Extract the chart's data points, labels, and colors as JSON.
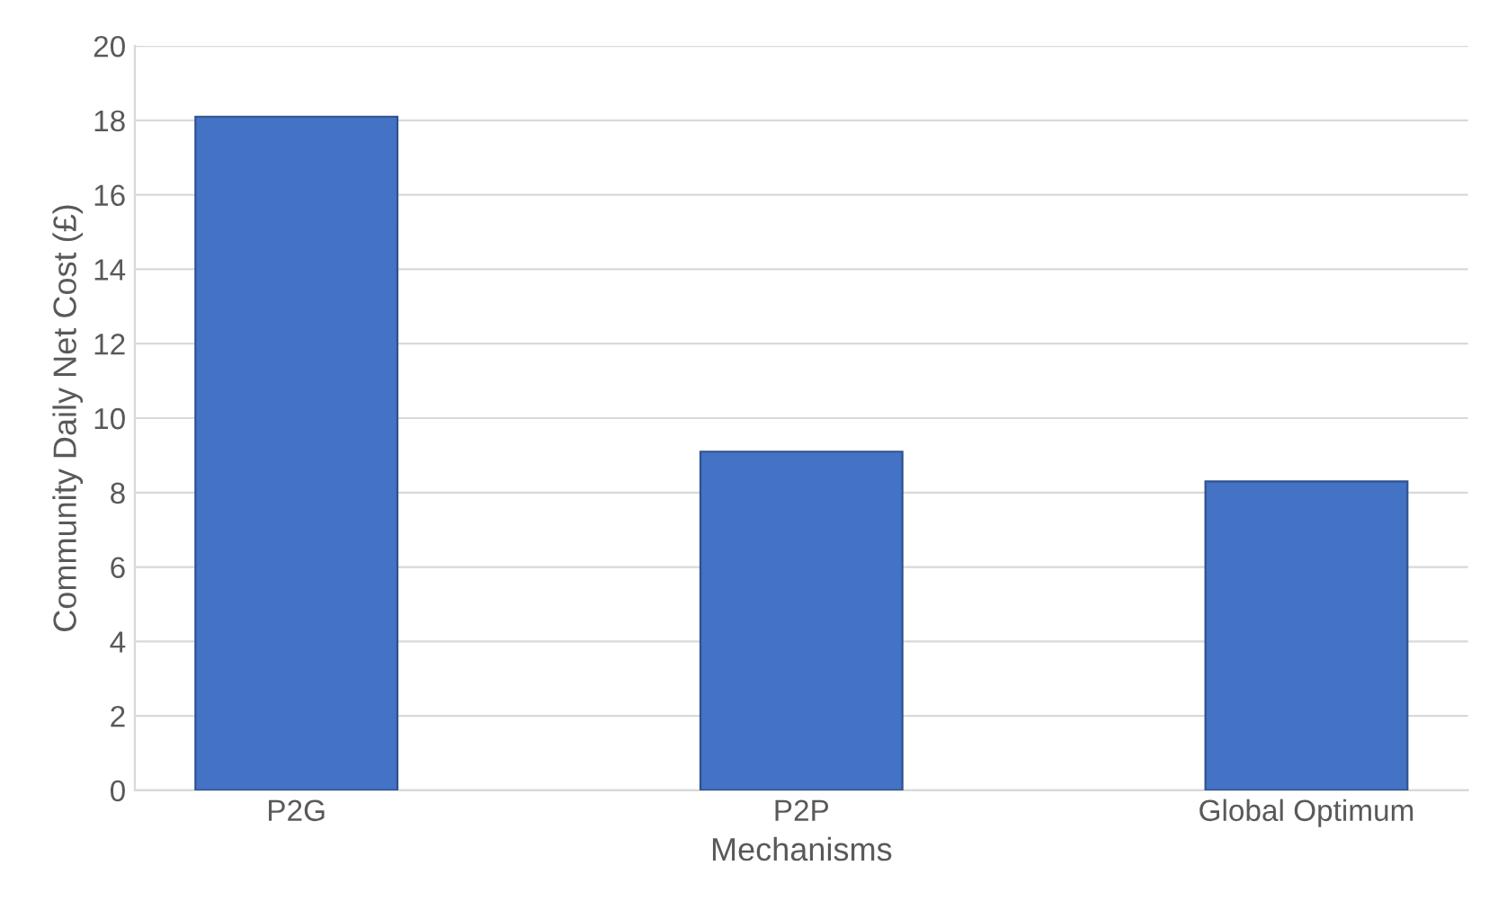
{
  "chart_data": {
    "type": "bar",
    "xlabel": "Mechanisms",
    "ylabel": "Community Daily Net Cost (£)",
    "categories": [
      "P2G",
      "P2P",
      "Global Optimum"
    ],
    "values": [
      18.1,
      9.1,
      8.3
    ],
    "color": "#4472c4",
    "ylim": [
      0,
      20
    ],
    "yticks": [
      0,
      2,
      4,
      6,
      8,
      10,
      12,
      14,
      16,
      18,
      20
    ],
    "grid": "y"
  }
}
